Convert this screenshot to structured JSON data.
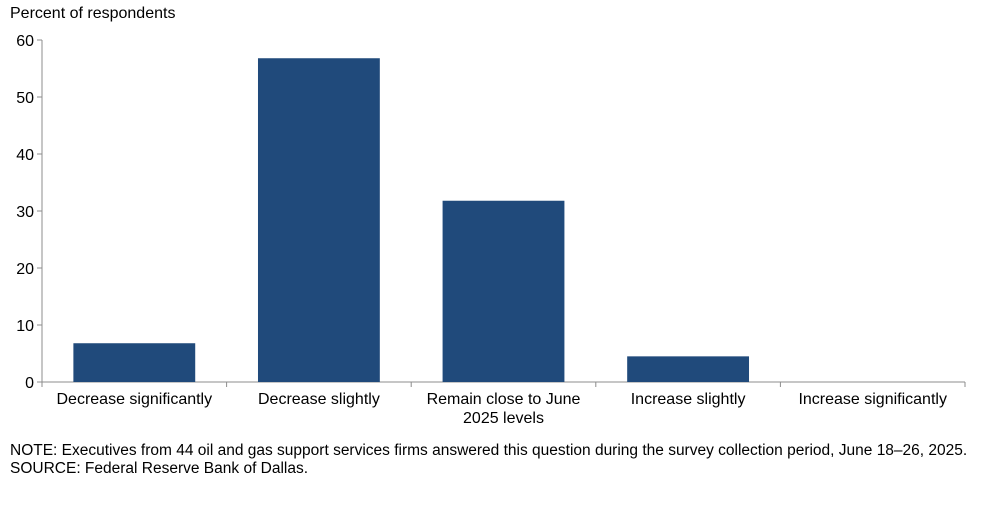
{
  "chart_data": {
    "type": "bar",
    "ylabel": "Percent of respondents",
    "xlabel": "",
    "title": "",
    "ylim": [
      0,
      60
    ],
    "yticks": [
      0,
      10,
      20,
      30,
      40,
      50,
      60
    ],
    "categories": [
      [
        "Decrease significantly"
      ],
      [
        "Decrease slightly"
      ],
      [
        "Remain close to June",
        "2025 levels"
      ],
      [
        "Increase slightly"
      ],
      [
        "Increase significantly"
      ]
    ],
    "values": [
      6.8,
      56.8,
      31.8,
      4.5,
      0
    ],
    "bar_color": "#204a7b",
    "grid": false
  },
  "notes": {
    "note": "NOTE:  Executives  from  44  oil  and  gas  support  services  firms  answered  this  question  during  the  survey  collection  period,  June  18–26, 2025.",
    "source": "SOURCE:  Federal Reserve Bank of Dallas."
  }
}
